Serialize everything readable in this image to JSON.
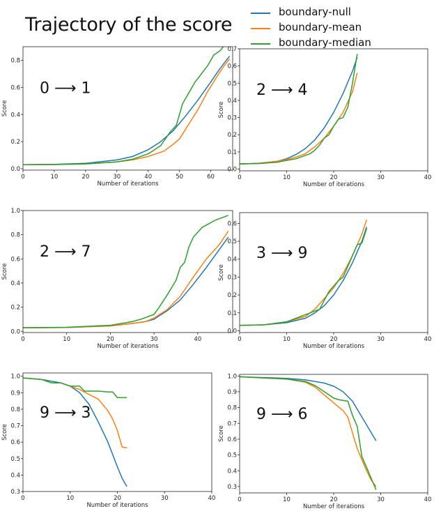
{
  "title": "Trajectory of the score",
  "legend": [
    {
      "name": "boundary-null",
      "color": "#1f77b4"
    },
    {
      "name": "boundary-mean",
      "color": "#ff7f0e"
    },
    {
      "name": "boundary-median",
      "color": "#2ca02c"
    }
  ],
  "chart_data": [
    {
      "type": "line",
      "label": "0 ⟶ 1",
      "xlabel": "Number of iterations",
      "ylabel": "Score",
      "xlim": [
        0,
        67
      ],
      "ylim": [
        -0.01,
        0.9
      ],
      "xticks": [
        0,
        10,
        20,
        30,
        40,
        50,
        60
      ],
      "yticks": [
        0.0,
        0.2,
        0.4,
        0.6,
        0.8
      ],
      "series": [
        {
          "name": "boundary-null",
          "x": [
            0,
            10,
            20,
            30,
            35,
            40,
            44,
            48,
            52,
            56,
            60,
            63,
            66
          ],
          "y": [
            0.03,
            0.032,
            0.04,
            0.065,
            0.09,
            0.14,
            0.2,
            0.28,
            0.39,
            0.51,
            0.64,
            0.74,
            0.83
          ]
        },
        {
          "name": "boundary-mean",
          "x": [
            0,
            10,
            20,
            30,
            35,
            40,
            45,
            48,
            50,
            53,
            56,
            59,
            62,
            64,
            66
          ],
          "y": [
            0.03,
            0.031,
            0.035,
            0.05,
            0.065,
            0.09,
            0.13,
            0.18,
            0.22,
            0.33,
            0.44,
            0.57,
            0.68,
            0.75,
            0.81
          ]
        },
        {
          "name": "boundary-median",
          "x": [
            0,
            10,
            20,
            30,
            35,
            40,
            44,
            47,
            49,
            51,
            53,
            55,
            57,
            59,
            61,
            63,
            65,
            66
          ],
          "y": [
            0.03,
            0.031,
            0.036,
            0.05,
            0.07,
            0.11,
            0.17,
            0.27,
            0.32,
            0.48,
            0.56,
            0.64,
            0.7,
            0.76,
            0.84,
            0.87,
            0.93,
            0.94
          ]
        }
      ]
    },
    {
      "type": "line",
      "label": "2 ⟶ 4",
      "xlabel": "Number of iterations",
      "ylabel": "Score",
      "xlim": [
        0,
        40
      ],
      "ylim": [
        -0.01,
        0.7
      ],
      "xticks": [
        0,
        10,
        20,
        30,
        40
      ],
      "yticks": [
        0.0,
        0.1,
        0.2,
        0.3,
        0.4,
        0.5,
        0.6,
        0.7
      ],
      "series": [
        {
          "name": "boundary-null",
          "x": [
            0,
            4,
            8,
            10,
            12,
            14,
            16,
            18,
            20,
            22,
            24,
            25
          ],
          "y": [
            0.03,
            0.034,
            0.045,
            0.06,
            0.085,
            0.12,
            0.17,
            0.24,
            0.33,
            0.44,
            0.57,
            0.65
          ]
        },
        {
          "name": "boundary-mean",
          "x": [
            0,
            4,
            8,
            10,
            12,
            14,
            16,
            18,
            20,
            22,
            24,
            25
          ],
          "y": [
            0.03,
            0.033,
            0.045,
            0.055,
            0.07,
            0.09,
            0.13,
            0.18,
            0.25,
            0.33,
            0.45,
            0.56
          ]
        },
        {
          "name": "boundary-median",
          "x": [
            0,
            4,
            8,
            10,
            12,
            14,
            15,
            16,
            17,
            18,
            19,
            20,
            21,
            22,
            23,
            24,
            25
          ],
          "y": [
            0.03,
            0.032,
            0.04,
            0.05,
            0.06,
            0.08,
            0.09,
            0.11,
            0.14,
            0.18,
            0.2,
            0.25,
            0.29,
            0.3,
            0.36,
            0.5,
            0.67
          ]
        }
      ]
    },
    {
      "type": "line",
      "label": "2 ⟶ 7",
      "xlabel": "Number of iterations",
      "ylabel": "Score",
      "xlim": [
        0,
        48
      ],
      "ylim": [
        -0.01,
        1.0
      ],
      "xticks": [
        0,
        10,
        20,
        30,
        40
      ],
      "yticks": [
        0.0,
        0.2,
        0.4,
        0.6,
        0.8,
        1.0
      ],
      "series": [
        {
          "name": "boundary-null",
          "x": [
            0,
            10,
            20,
            25,
            28,
            30,
            33,
            36,
            39,
            42,
            45,
            47
          ],
          "y": [
            0.03,
            0.032,
            0.045,
            0.065,
            0.08,
            0.1,
            0.17,
            0.26,
            0.39,
            0.53,
            0.68,
            0.78
          ]
        },
        {
          "name": "boundary-mean",
          "x": [
            0,
            10,
            20,
            25,
            28,
            30,
            33,
            36,
            39,
            42,
            45,
            47
          ],
          "y": [
            0.03,
            0.032,
            0.045,
            0.065,
            0.08,
            0.11,
            0.18,
            0.29,
            0.45,
            0.6,
            0.72,
            0.83
          ]
        },
        {
          "name": "boundary-median",
          "x": [
            0,
            10,
            20,
            25,
            27,
            30,
            31,
            33,
            35,
            36,
            37,
            38,
            39,
            41,
            42,
            44,
            47
          ],
          "y": [
            0.03,
            0.033,
            0.05,
            0.08,
            0.1,
            0.14,
            0.19,
            0.3,
            0.42,
            0.53,
            0.57,
            0.7,
            0.78,
            0.86,
            0.88,
            0.92,
            0.96
          ]
        }
      ]
    },
    {
      "type": "line",
      "label": "3 ⟶ 9",
      "xlabel": "Number of iterations",
      "ylabel": "Score",
      "xlim": [
        0,
        40
      ],
      "ylim": [
        -0.01,
        0.66
      ],
      "xticks": [
        0,
        10,
        20,
        30,
        40
      ],
      "yticks": [
        0.0,
        0.1,
        0.2,
        0.3,
        0.4,
        0.5,
        0.6
      ],
      "series": [
        {
          "name": "boundary-null",
          "x": [
            0,
            5,
            10,
            14,
            16,
            18,
            20,
            22,
            24,
            26,
            27
          ],
          "y": [
            0.03,
            0.033,
            0.045,
            0.07,
            0.1,
            0.14,
            0.2,
            0.28,
            0.38,
            0.5,
            0.58
          ]
        },
        {
          "name": "boundary-mean",
          "x": [
            0,
            5,
            10,
            14,
            16,
            18,
            20,
            22,
            24,
            26,
            27
          ],
          "y": [
            0.03,
            0.033,
            0.05,
            0.08,
            0.12,
            0.18,
            0.24,
            0.32,
            0.42,
            0.54,
            0.62
          ]
        },
        {
          "name": "boundary-median",
          "x": [
            0,
            5,
            10,
            12,
            14,
            15,
            16,
            17,
            18,
            19,
            20,
            21,
            22,
            23,
            24,
            25,
            26,
            27
          ],
          "y": [
            0.03,
            0.033,
            0.05,
            0.07,
            0.09,
            0.1,
            0.11,
            0.12,
            0.17,
            0.22,
            0.25,
            0.28,
            0.3,
            0.36,
            0.42,
            0.48,
            0.49,
            0.57
          ]
        }
      ]
    },
    {
      "type": "line",
      "label": "9 ⟶ 3",
      "xlabel": "Number of iterations",
      "ylabel": "Score",
      "xlim": [
        0,
        40
      ],
      "ylim": [
        0.3,
        1.02
      ],
      "xticks": [
        0,
        10,
        20,
        30,
        40
      ],
      "yticks": [
        0.3,
        0.4,
        0.5,
        0.6,
        0.7,
        0.8,
        0.9,
        1.0
      ],
      "series": [
        {
          "name": "boundary-null",
          "x": [
            0,
            4,
            8,
            10,
            12,
            14,
            16,
            18,
            20,
            21,
            22
          ],
          "y": [
            0.99,
            0.98,
            0.96,
            0.94,
            0.9,
            0.83,
            0.72,
            0.6,
            0.45,
            0.38,
            0.33
          ]
        },
        {
          "name": "boundary-mean",
          "x": [
            0,
            4,
            6,
            8,
            10,
            12,
            14,
            16,
            18,
            19,
            20,
            21,
            22
          ],
          "y": [
            0.99,
            0.98,
            0.96,
            0.96,
            0.94,
            0.92,
            0.89,
            0.86,
            0.79,
            0.74,
            0.67,
            0.57,
            0.565
          ]
        },
        {
          "name": "boundary-median",
          "x": [
            0,
            4,
            6,
            8,
            10,
            12,
            13,
            14,
            16,
            18,
            19,
            20,
            21,
            22
          ],
          "y": [
            0.99,
            0.98,
            0.96,
            0.96,
            0.94,
            0.94,
            0.91,
            0.91,
            0.91,
            0.905,
            0.905,
            0.87,
            0.87,
            0.87
          ]
        }
      ]
    },
    {
      "type": "line",
      "label": "9 ⟶ 6",
      "xlabel": "Number of iterations",
      "ylabel": "Score",
      "xlim": [
        0,
        40
      ],
      "ylim": [
        0.26,
        1.01
      ],
      "xticks": [
        0,
        10,
        20,
        30,
        40
      ],
      "yticks": [
        0.3,
        0.4,
        0.5,
        0.6,
        0.7,
        0.8,
        0.9,
        1.0
      ],
      "series": [
        {
          "name": "boundary-null",
          "x": [
            0,
            10,
            14,
            18,
            20,
            22,
            24,
            26,
            28,
            29
          ],
          "y": [
            0.995,
            0.985,
            0.975,
            0.955,
            0.935,
            0.9,
            0.84,
            0.74,
            0.64,
            0.59
          ]
        },
        {
          "name": "boundary-mean",
          "x": [
            0,
            10,
            14,
            16,
            18,
            20,
            22,
            23,
            24,
            25,
            26,
            27,
            28,
            29
          ],
          "y": [
            0.995,
            0.98,
            0.96,
            0.93,
            0.88,
            0.83,
            0.78,
            0.74,
            0.64,
            0.54,
            0.47,
            0.4,
            0.34,
            0.3
          ]
        },
        {
          "name": "boundary-median",
          "x": [
            0,
            10,
            14,
            16,
            18,
            20,
            21,
            22,
            23,
            24,
            25,
            26,
            27,
            28,
            29
          ],
          "y": [
            0.995,
            0.98,
            0.965,
            0.94,
            0.9,
            0.86,
            0.85,
            0.845,
            0.84,
            0.75,
            0.68,
            0.49,
            0.42,
            0.35,
            0.28
          ]
        }
      ]
    }
  ]
}
